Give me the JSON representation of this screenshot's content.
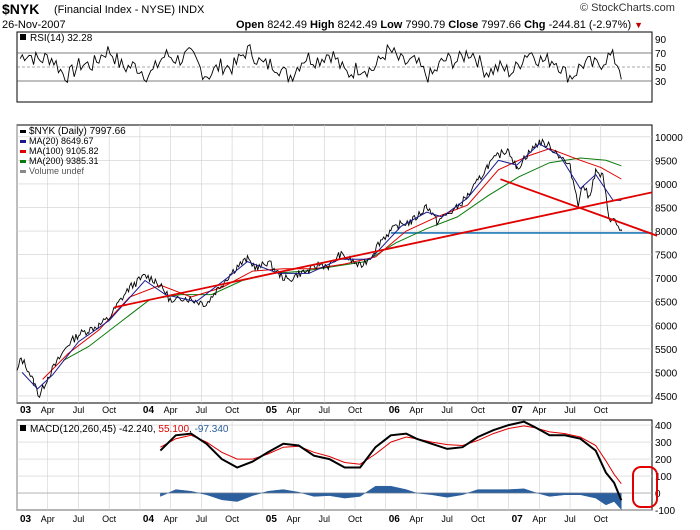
{
  "header": {
    "symbol": "$NYK",
    "subtitle": "(Financial Index - NYSE) INDX",
    "date": "26-Nov-2007",
    "brand": "© StockCharts.com",
    "open_label": "Open",
    "open": "8242.49",
    "high_label": "High",
    "high": "8242.49",
    "low_label": "Low",
    "low": "7990.79",
    "close_label": "Close",
    "close": "7997.66",
    "chg_label": "Chg",
    "chg": "-244.81 (-2.97%)"
  },
  "colors": {
    "price": "#000000",
    "ma20": "#1a1a8c",
    "ma100": "#e00000",
    "ma200": "#0a7a0a",
    "support": "#1f77b4",
    "histogram": "#2b5f9e",
    "trend": "#e00000"
  },
  "chart_data": [
    {
      "type": "line",
      "name": "RSI",
      "legend": "RSI(14) 32.28",
      "ylim": [
        0,
        100
      ],
      "yticks": [
        "90",
        "70",
        "50",
        "30"
      ],
      "ytick_values": [
        90,
        70,
        50,
        30
      ],
      "reference_lines": [
        70,
        50,
        30
      ],
      "last_value": 32.28
    },
    {
      "type": "line",
      "name": "Price",
      "ylim": [
        4350,
        10250
      ],
      "yticks": [
        "10000",
        "9500",
        "9000",
        "8500",
        "8000",
        "7500",
        "7000",
        "6500",
        "6000",
        "5500",
        "5000",
        "4500"
      ],
      "ytick_values": [
        10000,
        9500,
        9000,
        8500,
        8000,
        7500,
        7000,
        6500,
        6000,
        5500,
        5000,
        4500
      ],
      "x_labels": [
        "03",
        "Apr",
        "Jul",
        "Oct",
        "04",
        "Apr",
        "Jul",
        "Oct",
        "05",
        "Apr",
        "Jul",
        "Oct",
        "06",
        "Apr",
        "Jul",
        "Oct",
        "07",
        "Apr",
        "Jul",
        "Oct"
      ],
      "x_label_values": [
        0,
        3,
        6,
        9,
        12,
        15,
        18,
        21,
        24,
        27,
        30,
        33,
        36,
        39,
        42,
        45,
        48,
        51,
        54,
        57
      ],
      "legend": [
        {
          "label": "$NYK (Daily) 7997.66",
          "color": "#000000"
        },
        {
          "label": "MA(20) 8649.67",
          "color": "#1a1a8c"
        },
        {
          "label": "MA(100) 9105.82",
          "color": "#e00000"
        },
        {
          "label": "MA(200) 9385.31",
          "color": "#0a7a0a"
        },
        {
          "label": "Volume undef",
          "color": "#888888"
        }
      ],
      "price_points": [
        [
          0.0,
          5000
        ],
        [
          0.4,
          5300
        ],
        [
          1.0,
          5100
        ],
        [
          1.6,
          4800
        ],
        [
          2.2,
          4500
        ],
        [
          3.0,
          4900
        ],
        [
          4.0,
          5250
        ],
        [
          5.0,
          5600
        ],
        [
          6.0,
          5800
        ],
        [
          7.0,
          5900
        ],
        [
          8.0,
          6000
        ],
        [
          9.0,
          6150
        ],
        [
          10.0,
          6500
        ],
        [
          11.0,
          6800
        ],
        [
          12.5,
          7050
        ],
        [
          13.5,
          6950
        ],
        [
          14.5,
          6700
        ],
        [
          15.2,
          6450
        ],
        [
          16.0,
          6600
        ],
        [
          17.0,
          6550
        ],
        [
          18.5,
          6450
        ],
        [
          19.5,
          6750
        ],
        [
          20.5,
          7000
        ],
        [
          21.5,
          7250
        ],
        [
          22.5,
          7400
        ],
        [
          23.5,
          7200
        ],
        [
          24.5,
          7350
        ],
        [
          25.5,
          7100
        ],
        [
          26.5,
          6950
        ],
        [
          27.5,
          7100
        ],
        [
          28.5,
          7150
        ],
        [
          29.5,
          7300
        ],
        [
          30.5,
          7250
        ],
        [
          31.5,
          7500
        ],
        [
          32.5,
          7400
        ],
        [
          33.5,
          7250
        ],
        [
          34.5,
          7450
        ],
        [
          35.5,
          7800
        ],
        [
          36.5,
          8000
        ],
        [
          37.5,
          8150
        ],
        [
          38.5,
          8200
        ],
        [
          39.5,
          8400
        ],
        [
          40.0,
          8550
        ],
        [
          41.0,
          8200
        ],
        [
          42.0,
          8350
        ],
        [
          43.0,
          8500
        ],
        [
          44.0,
          8750
        ],
        [
          45.0,
          9050
        ],
        [
          46.0,
          9400
        ],
        [
          47.0,
          9600
        ],
        [
          48.0,
          9750
        ],
        [
          48.8,
          9300
        ],
        [
          49.5,
          9550
        ],
        [
          50.2,
          9700
        ],
        [
          51.0,
          9900
        ],
        [
          52.0,
          9800
        ],
        [
          53.0,
          9600
        ],
        [
          54.0,
          9350
        ],
        [
          54.8,
          8600
        ],
        [
          55.3,
          9000
        ],
        [
          55.8,
          8700
        ],
        [
          56.5,
          9250
        ],
        [
          57.2,
          9150
        ],
        [
          57.8,
          8300
        ],
        [
          58.4,
          8200
        ],
        [
          59.0,
          7998
        ]
      ],
      "ma20_points": [
        [
          0.5,
          5000
        ],
        [
          2.0,
          4650
        ],
        [
          3.5,
          4950
        ],
        [
          6.0,
          5650
        ],
        [
          9.0,
          6100
        ],
        [
          12.5,
          6950
        ],
        [
          14.5,
          6650
        ],
        [
          17.5,
          6500
        ],
        [
          20.5,
          7000
        ],
        [
          22.5,
          7350
        ],
        [
          25.5,
          7100
        ],
        [
          28.5,
          7100
        ],
        [
          31.5,
          7400
        ],
        [
          34.5,
          7400
        ],
        [
          37.5,
          8100
        ],
        [
          40.0,
          8400
        ],
        [
          41.5,
          8300
        ],
        [
          44.0,
          8700
        ],
        [
          47.0,
          9500
        ],
        [
          48.8,
          9400
        ],
        [
          51.0,
          9850
        ],
        [
          53.0,
          9600
        ],
        [
          55.0,
          8900
        ],
        [
          56.5,
          9200
        ],
        [
          58.2,
          8650
        ],
        [
          59.0,
          8650
        ]
      ],
      "ma100_points": [
        [
          2.5,
          4850
        ],
        [
          5.0,
          5400
        ],
        [
          8.0,
          5900
        ],
        [
          11.0,
          6600
        ],
        [
          14.0,
          6850
        ],
        [
          17.0,
          6600
        ],
        [
          20.0,
          6800
        ],
        [
          23.0,
          7150
        ],
        [
          26.0,
          7200
        ],
        [
          29.0,
          7200
        ],
        [
          32.0,
          7300
        ],
        [
          35.0,
          7450
        ],
        [
          38.0,
          8000
        ],
        [
          41.0,
          8300
        ],
        [
          44.0,
          8550
        ],
        [
          47.0,
          9300
        ],
        [
          50.0,
          9600
        ],
        [
          52.0,
          9750
        ],
        [
          55.0,
          9500
        ],
        [
          57.0,
          9350
        ],
        [
          59.0,
          9105
        ]
      ],
      "ma200_points": [
        [
          4.5,
          5250
        ],
        [
          7.0,
          5550
        ],
        [
          10.0,
          6050
        ],
        [
          13.0,
          6550
        ],
        [
          16.0,
          6650
        ],
        [
          19.0,
          6650
        ],
        [
          22.0,
          6950
        ],
        [
          25.0,
          7100
        ],
        [
          28.0,
          7150
        ],
        [
          31.0,
          7250
        ],
        [
          34.0,
          7350
        ],
        [
          37.0,
          7750
        ],
        [
          40.0,
          8050
        ],
        [
          43.0,
          8300
        ],
        [
          46.0,
          8750
        ],
        [
          49.0,
          9150
        ],
        [
          52.0,
          9450
        ],
        [
          55.0,
          9550
        ],
        [
          57.5,
          9500
        ],
        [
          59.0,
          9385
        ]
      ],
      "trendlines": [
        {
          "from": [
            9.5,
            6380
          ],
          "to": [
            62,
            8820
          ],
          "color": "#e00000"
        },
        {
          "from": [
            47.2,
            9100
          ],
          "to": [
            62.5,
            7900
          ],
          "color": "#e00000"
        }
      ],
      "horizontal_lines": [
        {
          "value": 7960,
          "from_x": 36.5,
          "color": "#1f77b4"
        }
      ]
    },
    {
      "type": "line",
      "name": "MACD",
      "legend": {
        "prefix": "MACD(120,260,45)",
        "macd": "-42.240",
        "signal": "55.100",
        "histogram": "-97.340"
      },
      "ylim": [
        -100,
        430
      ],
      "yticks": [
        "400",
        "300",
        "200",
        "100",
        "0",
        "-100"
      ],
      "ytick_values": [
        400,
        300,
        200,
        100,
        0,
        -100
      ],
      "x_labels": [
        "03",
        "Apr",
        "Jul",
        "Oct",
        "04",
        "Apr",
        "Jul",
        "Oct",
        "05",
        "Apr",
        "Jul",
        "Oct",
        "06",
        "Apr",
        "Jul",
        "Oct",
        "07",
        "Apr",
        "Jul",
        "Oct"
      ],
      "x_label_values": [
        0,
        3,
        6,
        9,
        12,
        15,
        18,
        21,
        24,
        27,
        30,
        33,
        36,
        39,
        42,
        45,
        48,
        51,
        54,
        57
      ],
      "macd_points": [
        [
          14,
          250
        ],
        [
          15.5,
          340
        ],
        [
          17,
          350
        ],
        [
          18.5,
          290
        ],
        [
          20,
          200
        ],
        [
          21.5,
          150
        ],
        [
          23,
          185
        ],
        [
          24.5,
          240
        ],
        [
          26,
          290
        ],
        [
          27.5,
          280
        ],
        [
          29,
          220
        ],
        [
          30.5,
          200
        ],
        [
          32,
          150
        ],
        [
          33.5,
          150
        ],
        [
          35,
          270
        ],
        [
          36.5,
          340
        ],
        [
          38,
          350
        ],
        [
          39,
          320
        ],
        [
          40.5,
          290
        ],
        [
          42,
          260
        ],
        [
          43.5,
          270
        ],
        [
          45,
          330
        ],
        [
          46.5,
          370
        ],
        [
          48,
          400
        ],
        [
          49.5,
          420
        ],
        [
          50.5,
          390
        ],
        [
          52,
          340
        ],
        [
          53.5,
          340
        ],
        [
          55,
          320
        ],
        [
          56.5,
          250
        ],
        [
          57.5,
          120
        ],
        [
          58.3,
          60
        ],
        [
          59,
          -42
        ]
      ],
      "signal_points": [
        [
          14,
          270
        ],
        [
          15.5,
          320
        ],
        [
          17,
          340
        ],
        [
          18.5,
          300
        ],
        [
          20,
          240
        ],
        [
          21.5,
          200
        ],
        [
          23,
          200
        ],
        [
          24.5,
          230
        ],
        [
          26,
          270
        ],
        [
          27.5,
          275
        ],
        [
          29,
          240
        ],
        [
          30.5,
          215
        ],
        [
          32,
          180
        ],
        [
          33.5,
          170
        ],
        [
          35,
          230
        ],
        [
          36.5,
          300
        ],
        [
          38,
          330
        ],
        [
          39,
          320
        ],
        [
          40.5,
          300
        ],
        [
          42,
          285
        ],
        [
          43.5,
          280
        ],
        [
          45,
          310
        ],
        [
          46.5,
          350
        ],
        [
          48,
          380
        ],
        [
          49.5,
          395
        ],
        [
          50.5,
          385
        ],
        [
          52,
          360
        ],
        [
          53.5,
          350
        ],
        [
          55,
          330
        ],
        [
          56.5,
          280
        ],
        [
          57.5,
          190
        ],
        [
          58.3,
          110
        ],
        [
          59,
          55
        ]
      ],
      "histogram_points": [
        [
          14,
          -20
        ],
        [
          15.5,
          20
        ],
        [
          17,
          10
        ],
        [
          18.5,
          -10
        ],
        [
          20,
          -40
        ],
        [
          21.5,
          -50
        ],
        [
          23,
          -15
        ],
        [
          24.5,
          10
        ],
        [
          26,
          20
        ],
        [
          27.5,
          5
        ],
        [
          29,
          -20
        ],
        [
          30.5,
          -15
        ],
        [
          32,
          -30
        ],
        [
          33.5,
          -20
        ],
        [
          35,
          40
        ],
        [
          36.5,
          40
        ],
        [
          38,
          20
        ],
        [
          39,
          0
        ],
        [
          40.5,
          -10
        ],
        [
          42,
          -25
        ],
        [
          43.5,
          -10
        ],
        [
          45,
          20
        ],
        [
          46.5,
          20
        ],
        [
          48,
          20
        ],
        [
          49.5,
          25
        ],
        [
          50.5,
          5
        ],
        [
          52,
          -20
        ],
        [
          53.5,
          -10
        ],
        [
          55,
          -10
        ],
        [
          56.5,
          -30
        ],
        [
          57.5,
          -70
        ],
        [
          58.3,
          -50
        ],
        [
          59,
          -97
        ]
      ]
    }
  ]
}
